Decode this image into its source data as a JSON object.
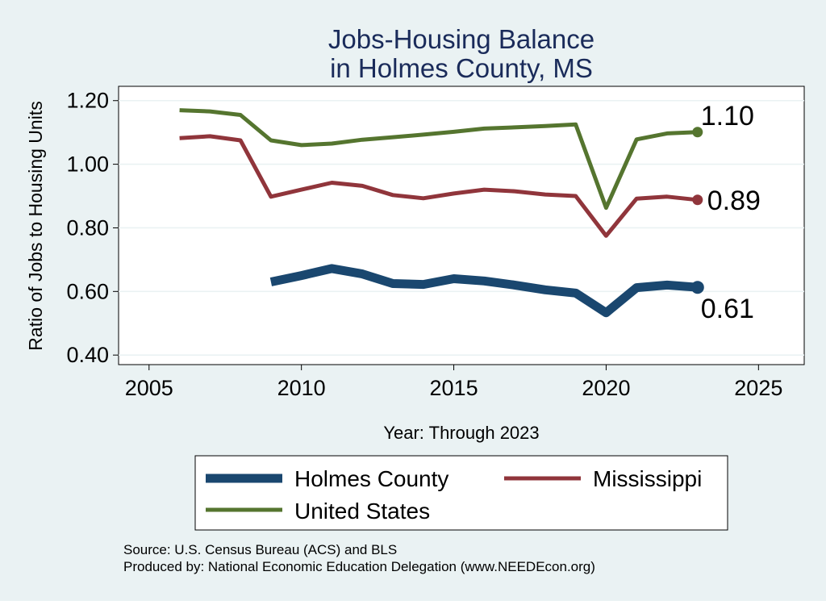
{
  "chart_data": {
    "type": "line",
    "title": "Jobs-Housing Balance",
    "subtitle": "in Holmes County, MS",
    "xlabel": "Year: Through 2023",
    "ylabel": "Ratio of Jobs to Housing Units",
    "xlim": [
      2004,
      2026.5
    ],
    "ylim": [
      0.37,
      1.245
    ],
    "x_ticks": [
      2005,
      2010,
      2015,
      2020,
      2025
    ],
    "y_ticks": [
      0.4,
      0.6,
      0.8,
      1.0,
      1.2
    ],
    "y_tick_labels": [
      "0.40",
      "0.60",
      "0.80",
      "1.00",
      "1.20"
    ],
    "grid": true,
    "legend_position": "bottom",
    "series": [
      {
        "name": "Holmes County",
        "color": "#1a476f",
        "x": [
          2009,
          2010,
          2011,
          2012,
          2013,
          2014,
          2015,
          2016,
          2017,
          2018,
          2019,
          2020,
          2021,
          2022,
          2023
        ],
        "values": [
          0.63,
          0.65,
          0.672,
          0.655,
          0.625,
          0.622,
          0.64,
          0.633,
          0.62,
          0.605,
          0.595,
          0.533,
          0.612,
          0.62,
          0.613
        ],
        "end_label": "0.61"
      },
      {
        "name": "Mississippi",
        "color": "#90353b",
        "x": [
          2006,
          2007,
          2008,
          2009,
          2010,
          2011,
          2012,
          2013,
          2014,
          2015,
          2016,
          2017,
          2018,
          2019,
          2020,
          2021,
          2022,
          2023
        ],
        "values": [
          1.082,
          1.088,
          1.075,
          0.898,
          0.92,
          0.942,
          0.932,
          0.903,
          0.893,
          0.908,
          0.92,
          0.915,
          0.905,
          0.9,
          0.775,
          0.892,
          0.898,
          0.888
        ],
        "end_label": "0.89"
      },
      {
        "name": "United States",
        "color": "#55752f",
        "x": [
          2006,
          2007,
          2008,
          2009,
          2010,
          2011,
          2012,
          2013,
          2014,
          2015,
          2016,
          2017,
          2018,
          2019,
          2020,
          2021,
          2022,
          2023
        ],
        "values": [
          1.17,
          1.166,
          1.155,
          1.075,
          1.06,
          1.065,
          1.077,
          1.085,
          1.093,
          1.102,
          1.112,
          1.116,
          1.12,
          1.125,
          0.863,
          1.078,
          1.097,
          1.101
        ],
        "end_label": "1.10"
      }
    ]
  },
  "source_text": "Source: U.S. Census Bureau (ACS) and BLS",
  "produced_text": "Produced by: National Economic Education Delegation (www.NEEDEcon.org)"
}
